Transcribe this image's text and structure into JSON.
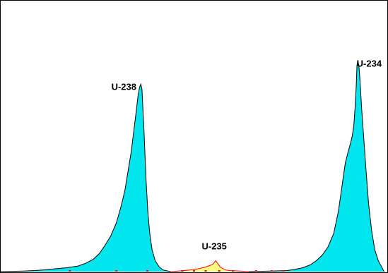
{
  "chart_data": {
    "type": "area",
    "title": "",
    "xlabel": "",
    "ylabel": "",
    "grid": false,
    "xlim": [
      0,
      1000
    ],
    "ylim": [
      0,
      1000
    ],
    "colors": {
      "frame": "#000000",
      "peak_fill": "#00e5ee",
      "peak_stroke": "#000000",
      "minor_fill": "#ffff80",
      "minor_stroke": "#ff0000"
    },
    "series": [
      {
        "x": [
          0,
          60,
          90,
          110,
          140,
          170,
          200,
          220,
          240,
          255,
          270,
          285,
          300,
          312,
          322,
          330,
          338,
          345,
          352,
          356,
          360,
          363,
          366,
          368,
          371,
          374,
          377,
          381,
          386,
          392,
          400,
          410,
          420,
          440
        ],
        "y": [
          0,
          2,
          4,
          6,
          10,
          14,
          20,
          30,
          45,
          65,
          95,
          130,
          180,
          240,
          300,
          370,
          440,
          520,
          600,
          650,
          680,
          690,
          670,
          610,
          520,
          420,
          320,
          220,
          140,
          80,
          40,
          18,
          6,
          0
        ]
      },
      {
        "x": [
          440,
          470,
          490,
          510,
          522,
          532,
          540,
          548,
          556,
          562,
          568,
          575,
          582,
          590,
          600,
          620,
          640
        ],
        "y": [
          0,
          3,
          6,
          10,
          14,
          18,
          22,
          26,
          40,
          28,
          16,
          10,
          6,
          4,
          3,
          2,
          0
        ]
      },
      {
        "x": [
          640,
          700,
          740,
          760,
          780,
          800,
          815,
          830,
          845,
          860,
          872,
          882,
          890,
          897,
          903,
          908,
          912,
          915,
          918,
          920,
          922,
          925,
          928,
          932,
          938,
          944,
          950,
          958,
          966,
          975,
          990
        ],
        "y": [
          0,
          2,
          4,
          8,
          14,
          25,
          40,
          60,
          90,
          140,
          220,
          320,
          400,
          440,
          470,
          500,
          540,
          600,
          680,
          760,
          775,
          760,
          700,
          600,
          480,
          360,
          250,
          150,
          80,
          40,
          0
        ]
      }
    ],
    "annotations": [
      {
        "text": "U-238",
        "x": 368,
        "y": 690
      },
      {
        "text": "U-235",
        "x": 556,
        "y": 40
      },
      {
        "text": "U-234",
        "x": 920,
        "y": 775
      }
    ]
  }
}
